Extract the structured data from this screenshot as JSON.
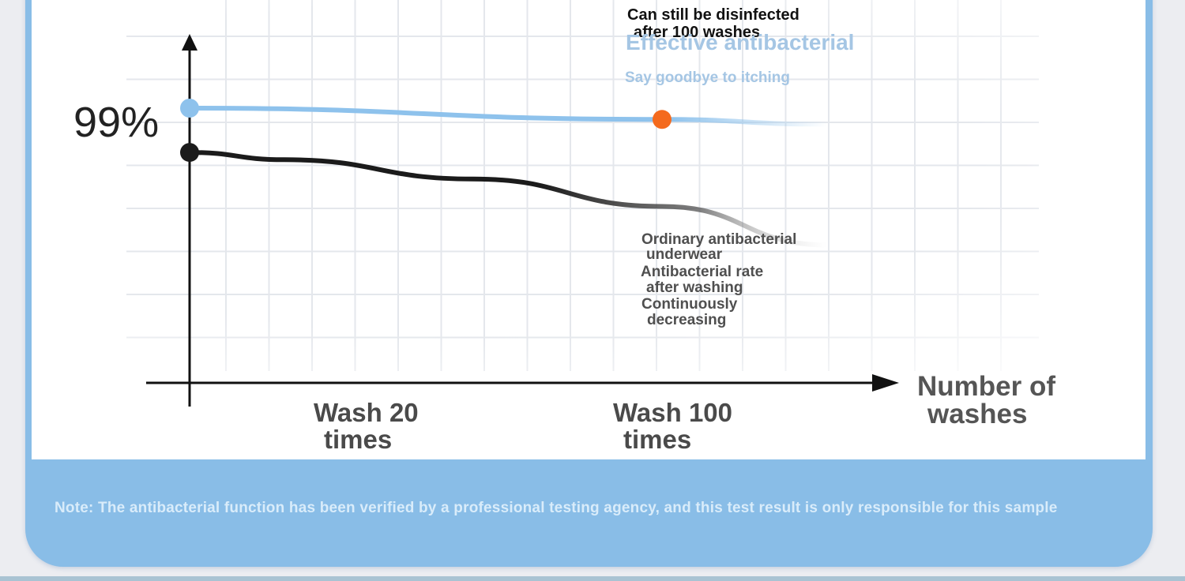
{
  "chart_data": {
    "type": "line",
    "categories": [
      "Wash 20 times",
      "Wash 100 times"
    ],
    "y_tick_labels": [
      "99%"
    ],
    "xlabel": "Number of washes",
    "ylabel": "",
    "grid": true,
    "series": [
      {
        "name": "Effective antibacterial",
        "points": [
          {
            "x": 0,
            "y": 99
          },
          {
            "x": 100,
            "y": 97.6
          },
          {
            "x": 135,
            "y": 97.0
          }
        ],
        "highlight_x": 100
      },
      {
        "name": "Ordinary antibacterial underwear",
        "points": [
          {
            "x": 0,
            "y": 93.5
          },
          {
            "x": 20,
            "y": 92.6
          },
          {
            "x": 60,
            "y": 90.2
          },
          {
            "x": 100,
            "y": 86.8
          },
          {
            "x": 135,
            "y": 82.0
          }
        ]
      }
    ],
    "annotations": {
      "top_callout": [
        "Can still be disinfected",
        "after 100 washes"
      ],
      "effective_series_label": "Effective antibacterial",
      "effective_series_sublabel": "Say goodbye to itching",
      "ordinary_series_label": [
        "Ordinary antibacterial",
        "underwear",
        "Antibacterial rate",
        "after washing",
        "Continuously",
        "decreasing"
      ]
    },
    "colors": {
      "effective_line": "#8ec2ec",
      "ordinary_line": "#1b1b1b",
      "highlight_point": "#f46a1d",
      "axis": "#111111",
      "grid": "#e4e7ec"
    }
  },
  "footer": {
    "note": "Note: The antibacterial function has been verified by a professional testing agency, and this test result is only responsible for this sample"
  }
}
